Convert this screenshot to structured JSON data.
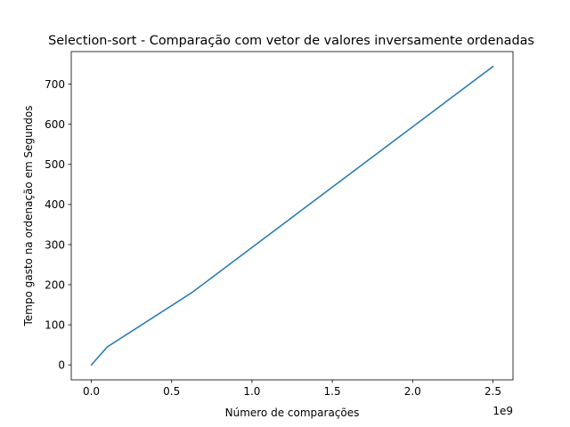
{
  "chart_data": {
    "type": "line",
    "title": "Selection-sort - Comparação com vetor de valores inversamente ordenadas",
    "xlabel": "Número de comparações",
    "ylabel": "Tempo gasto na ordenação  em Segundos",
    "x_offset_label": "1e9",
    "xlim": [
      -0.125,
      2.625
    ],
    "ylim": [
      -37.3,
      781.3
    ],
    "xticks": [
      0.0,
      0.5,
      1.0,
      1.5,
      2.0,
      2.5
    ],
    "xtick_labels": [
      "0.0",
      "0.5",
      "1.0",
      "1.5",
      "2.0",
      "2.5"
    ],
    "yticks": [
      0,
      100,
      200,
      300,
      400,
      500,
      600,
      700
    ],
    "ytick_labels": [
      "0",
      "100",
      "200",
      "300",
      "400",
      "500",
      "600",
      "700"
    ],
    "grid": false,
    "legend": "none",
    "series": [
      {
        "color": "#1f77b4",
        "x": [
          0.0,
          0.1,
          0.625,
          2.5
        ],
        "y": [
          0,
          45,
          180,
          744
        ]
      }
    ]
  }
}
